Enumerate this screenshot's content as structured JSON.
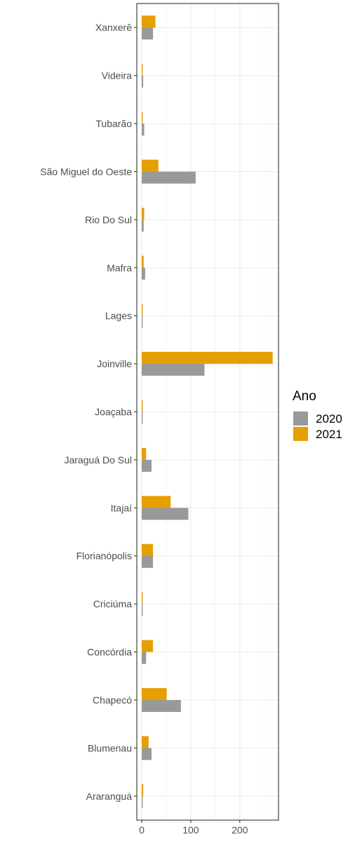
{
  "chart_data": {
    "type": "bar",
    "orientation": "horizontal",
    "title": "",
    "xlabel": "",
    "ylabel": "",
    "categories": [
      "Xanxerê",
      "Videira",
      "Tubarão",
      "São Miguel do Oeste",
      "Rio Do Sul",
      "Mafra",
      "Lages",
      "Joinville",
      "Joaçaba",
      "Jaraguá Do Sul",
      "Itajaí",
      "Florianópolis",
      "Criciúma",
      "Concórdia",
      "Chapecó",
      "Blumenau",
      "Araranguá"
    ],
    "series": [
      {
        "name": "2020",
        "color": "#999999",
        "values": [
          23,
          3,
          5,
          110,
          4,
          7,
          2,
          128,
          2,
          20,
          95,
          23,
          2,
          9,
          80,
          20,
          2
        ]
      },
      {
        "name": "2021",
        "color": "#E69F00",
        "values": [
          28,
          2,
          2,
          34,
          5,
          4,
          2,
          267,
          2,
          9,
          59,
          23,
          2,
          23,
          51,
          14,
          3
        ]
      }
    ],
    "xlim": [
      -10,
      279
    ],
    "x_ticks": [
      0,
      100,
      200
    ],
    "grid": true,
    "legend": {
      "title": "Ano",
      "position": "right",
      "entries": [
        "2020",
        "2021"
      ]
    }
  }
}
